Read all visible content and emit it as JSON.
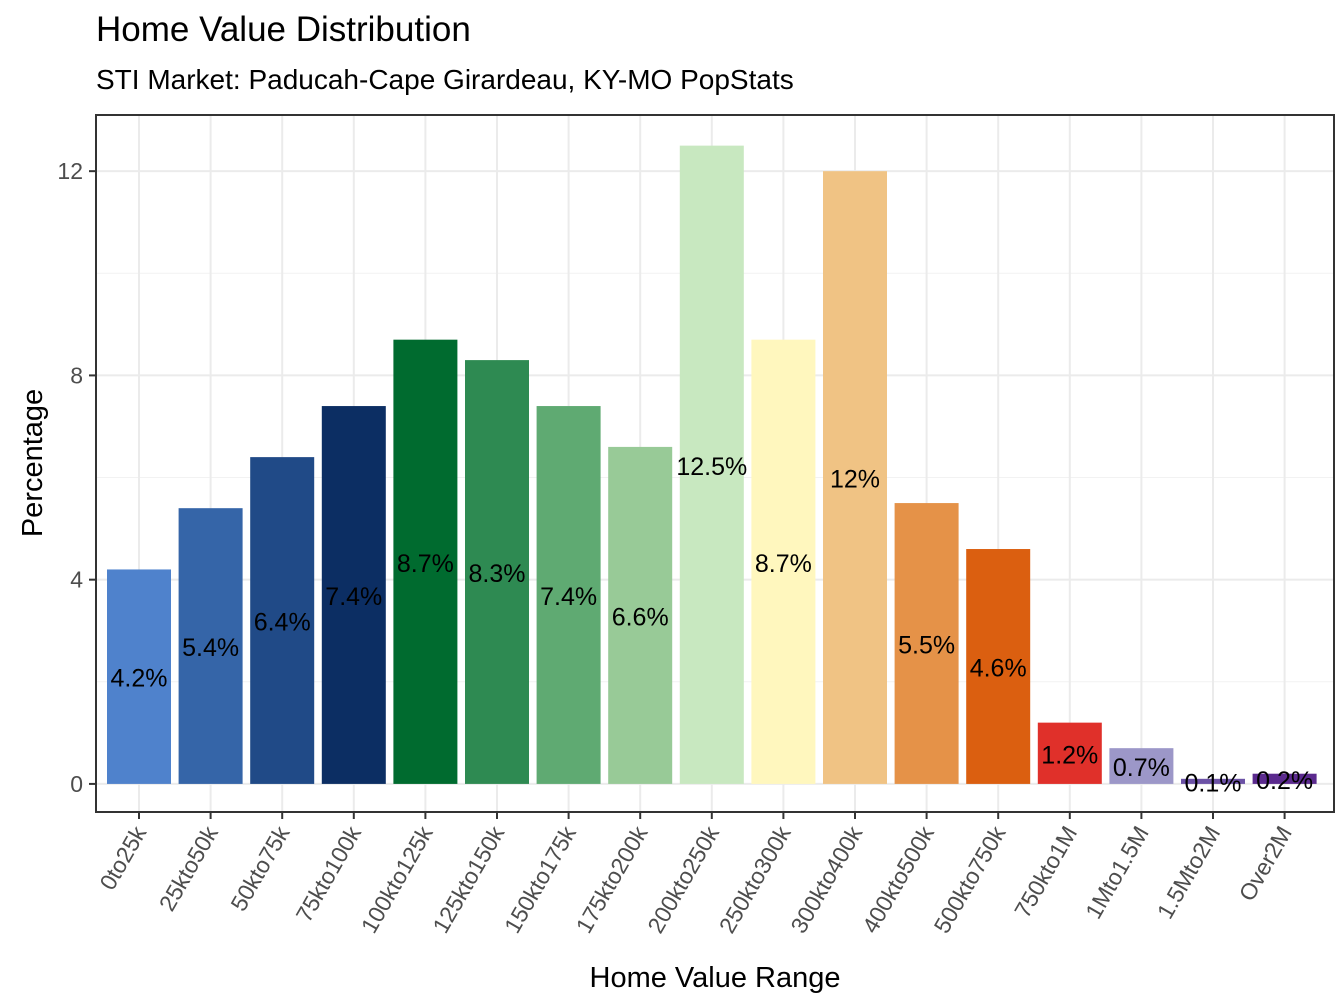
{
  "chart_data": {
    "type": "bar",
    "title": "Home Value Distribution",
    "subtitle": "STI Market: Paducah-Cape Girardeau, KY-MO PopStats",
    "xlabel": "Home Value Range",
    "ylabel": "Percentage",
    "ylim": [
      -0.55,
      13.1
    ],
    "yticks": [
      0,
      4,
      8,
      12
    ],
    "grid": true,
    "legend": "none",
    "categories": [
      "0to25k",
      "25kto50k",
      "50kto75k",
      "75kto100k",
      "100kto125k",
      "125kto150k",
      "150kto175k",
      "175kto200k",
      "200kto250k",
      "250kto300k",
      "300kto400k",
      "400kto500k",
      "500kto750k",
      "750kto1M",
      "1Mto1.5M",
      "1.5Mto2M",
      "Over2M"
    ],
    "values": [
      4.2,
      5.4,
      6.4,
      7.4,
      8.7,
      8.3,
      7.4,
      6.6,
      12.5,
      8.7,
      12.0,
      5.5,
      4.6,
      1.2,
      0.7,
      0.1,
      0.2
    ],
    "labels": [
      "4.2%",
      "5.4%",
      "6.4%",
      "7.4%",
      "8.7%",
      "8.3%",
      "7.4%",
      "6.6%",
      "12.5%",
      "8.7%",
      "12%",
      "5.5%",
      "4.6%",
      "1.2%",
      "0.7%",
      "0.1%",
      "0.2%"
    ],
    "colors": [
      "#4F82CC",
      "#3565A8",
      "#204A87",
      "#0C2E63",
      "#006B2F",
      "#2E8A52",
      "#5FAA72",
      "#98CA97",
      "#C8E8C0",
      "#FFF7BE",
      "#F0C384",
      "#E59248",
      "#DB5F10",
      "#E0302A",
      "#9C97C8",
      "#6C52A6",
      "#5B2A8E"
    ]
  }
}
